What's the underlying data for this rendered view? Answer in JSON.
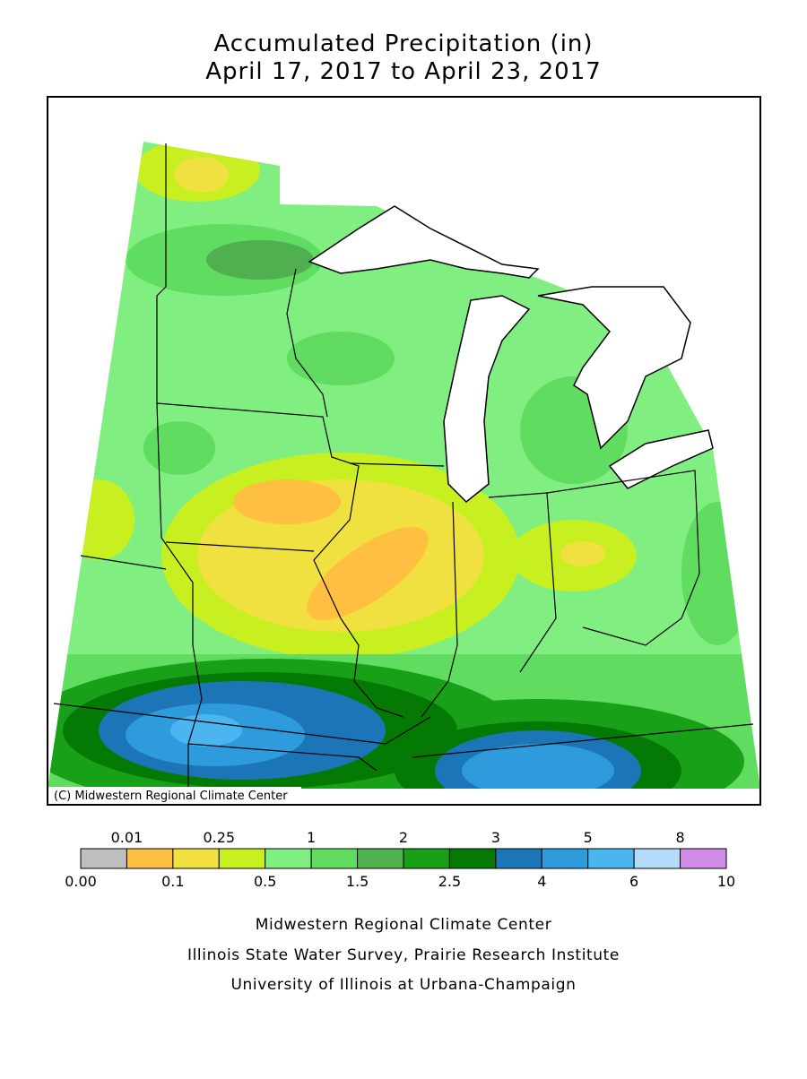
{
  "header": {
    "title": "Accumulated Precipitation (in)",
    "subtitle": "April 17, 2017 to April 23, 2017"
  },
  "map": {
    "credit": "(C) Midwestern Regional Climate Center"
  },
  "legend": {
    "labels": [
      "0.00",
      "0.01",
      "0.1",
      "0.25",
      "0.5",
      "1",
      "1.5",
      "2",
      "2.5",
      "3",
      "4",
      "5",
      "6",
      "8",
      "10"
    ],
    "colors": [
      "#bebebe",
      "#ffbf40",
      "#f0e040",
      "#c8f020",
      "#80ee80",
      "#60dc60",
      "#50b050",
      "#18a018",
      "#047a04",
      "#1b75b6",
      "#2e9bdc",
      "#4ab5ee",
      "#b4dcf8",
      "#d08ce8"
    ]
  },
  "footer": {
    "lines": [
      "Midwestern Regional Climate Center",
      "Illinois State Water Survey, Prairie Research Institute",
      "University of Illinois at Urbana-Champaign"
    ]
  }
}
